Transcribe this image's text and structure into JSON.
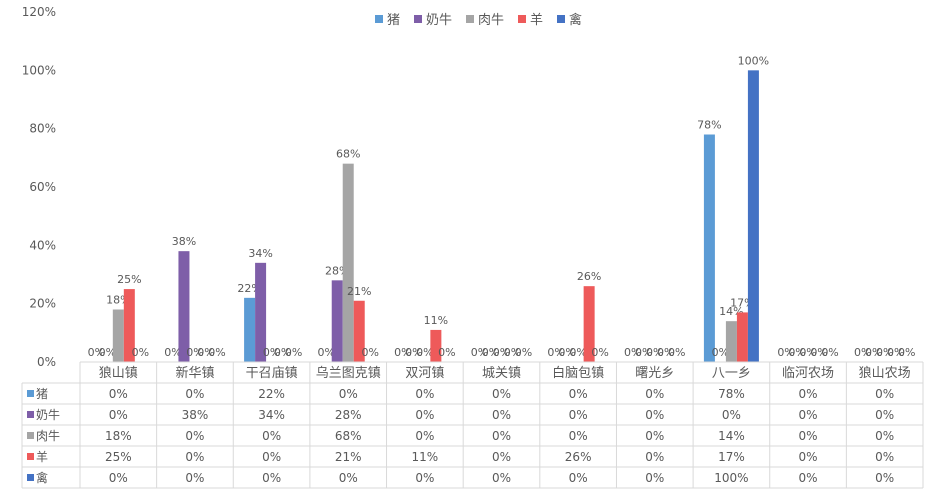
{
  "chart_data": {
    "type": "bar",
    "ylim": [
      0,
      1.2
    ],
    "yticks": [
      "0%",
      "20%",
      "40%",
      "60%",
      "80%",
      "100%",
      "120%"
    ],
    "grid": false,
    "legend_position": "top",
    "data_table": true,
    "categories": [
      "狼山镇",
      "新华镇",
      "干召庙镇",
      "乌兰图克镇",
      "双河镇",
      "城关镇",
      "白脑包镇",
      "曙光乡",
      "八一乡",
      "临河农场",
      "狼山农场"
    ],
    "series": [
      {
        "name": "猪",
        "color": "#5b9bd5",
        "values": [
          0,
          0,
          0.22,
          0,
          0,
          0,
          0,
          0,
          0.78,
          0,
          0
        ],
        "labels": [
          "0%",
          "0%",
          "22%",
          "0%",
          "0%",
          "0%",
          "0%",
          "0%",
          "78%",
          "0%",
          "0%"
        ]
      },
      {
        "name": "奶牛",
        "color": "#7e5ea8",
        "values": [
          0,
          0.38,
          0.34,
          0.28,
          0,
          0,
          0,
          0,
          0,
          0,
          0
        ],
        "labels": [
          "0%",
          "38%",
          "34%",
          "28%",
          "0%",
          "0%",
          "0%",
          "0%",
          "0%",
          "0%",
          "0%"
        ]
      },
      {
        "name": "肉牛",
        "color": "#a5a5a5",
        "values": [
          0.18,
          0,
          0,
          0.68,
          0,
          0,
          0,
          0,
          0.14,
          0,
          0
        ],
        "labels": [
          "18%",
          "0%",
          "0%",
          "68%",
          "0%",
          "0%",
          "0%",
          "0%",
          "14%",
          "0%",
          "0%"
        ]
      },
      {
        "name": "羊",
        "color": "#ee5a5a",
        "values": [
          0.25,
          0,
          0,
          0.21,
          0.11,
          0,
          0.26,
          0,
          0.17,
          0,
          0
        ],
        "labels": [
          "25%",
          "0%",
          "0%",
          "21%",
          "11%",
          "0%",
          "26%",
          "0%",
          "17%",
          "0%",
          "0%"
        ]
      },
      {
        "name": "禽",
        "color": "#4472c4",
        "values": [
          0,
          0,
          0,
          0,
          0,
          0,
          0,
          0,
          1.0,
          0,
          0
        ],
        "labels": [
          "0%",
          "0%",
          "0%",
          "0%",
          "0%",
          "0%",
          "0%",
          "0%",
          "100%",
          "0%",
          "0%"
        ]
      }
    ]
  }
}
